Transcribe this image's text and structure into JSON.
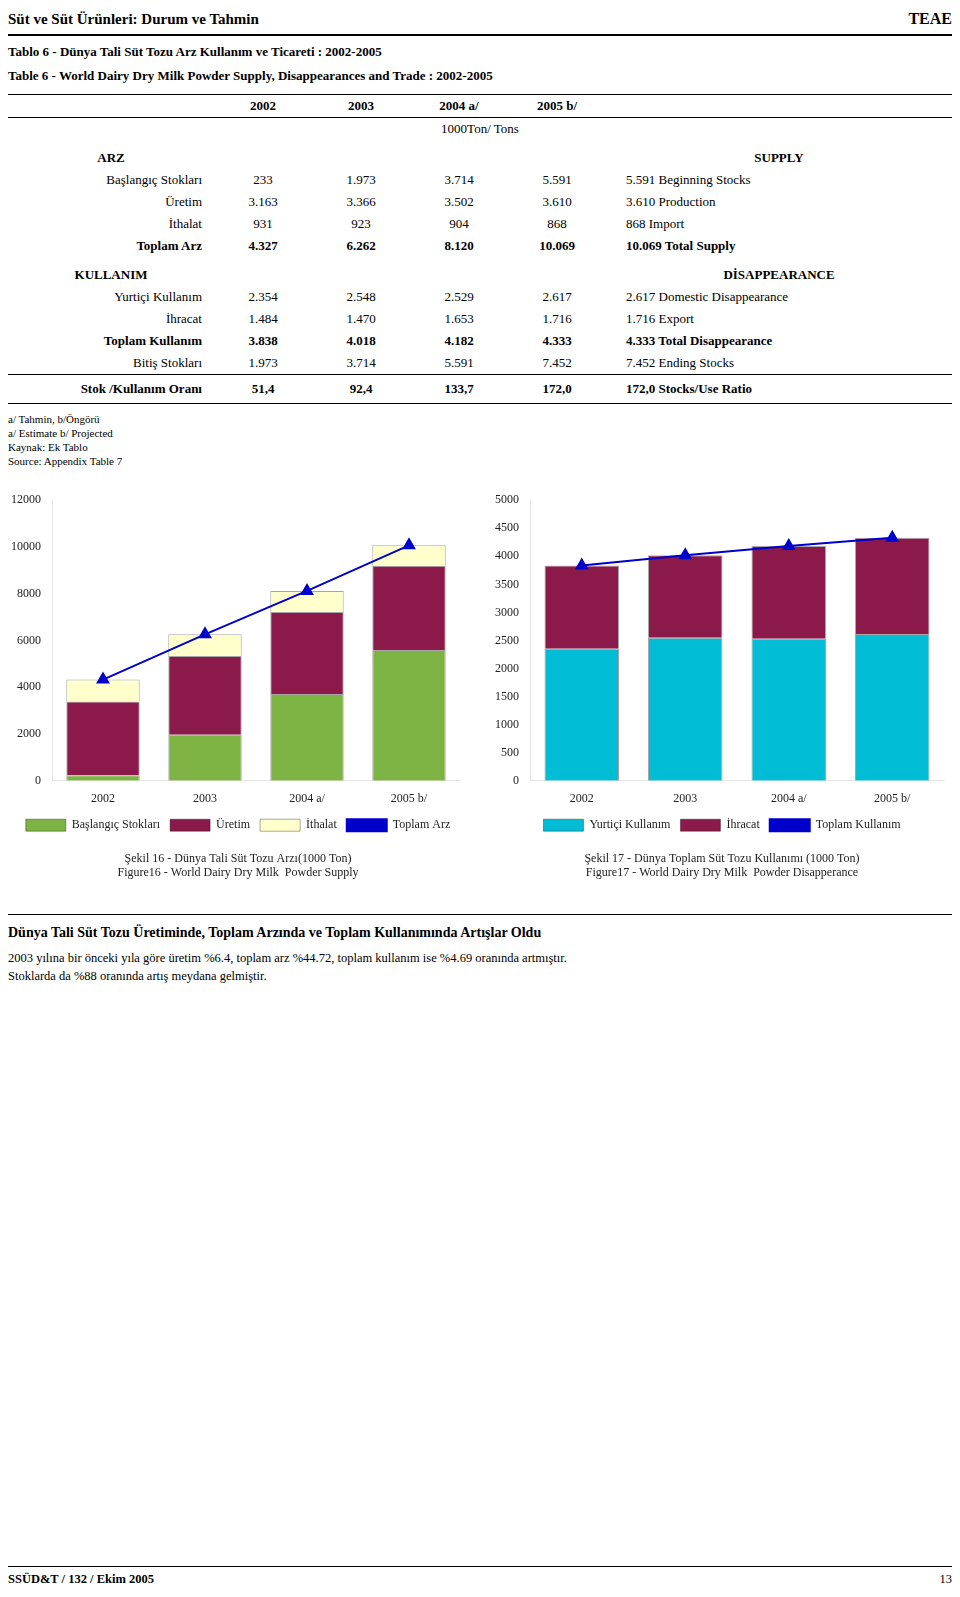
{
  "page": {
    "header_left": "Süt ve Süt Ürünleri: Durum ve Tahmin",
    "header_right": "TEAE",
    "table_titles": [
      "Tablo 6 - Dünya  Tali Süt Tozu Arz Kullanım ve Ticareti : 2002-2005",
      "Table 6 - World Dairy Dry Milk  Powder Supply, Disappearances and Trade : 2002-2005"
    ],
    "columns": [
      "2002",
      "2003",
      "2004 a/",
      "2005 b/"
    ],
    "unit": "1000Ton/ Tons",
    "sections": [
      {
        "left": "ARZ",
        "right": "SUPPLY",
        "rows": [
          {
            "tr": "Başlangıç Stokları",
            "values": [
              "233",
              "1.973",
              "3.714",
              "5.591"
            ],
            "en": "Beginning Stocks",
            "bold": false
          },
          {
            "tr": "Üretim",
            "values": [
              "3.163",
              "3.366",
              "3.502",
              "3.610"
            ],
            "en": "Production",
            "bold": false
          },
          {
            "tr": "İthalat",
            "values": [
              "931",
              "923",
              "904",
              "868"
            ],
            "en": "Import",
            "bold": false
          },
          {
            "tr": "Toplam Arz",
            "values": [
              "4.327",
              "6.262",
              "8.120",
              "10.069"
            ],
            "en": "Total Supply",
            "bold": true
          }
        ]
      },
      {
        "left": "KULLANIM",
        "right": "DİSAPPEARANCE",
        "rows": [
          {
            "tr": "Yurtiçi Kullanım",
            "values": [
              "2.354",
              "2.548",
              "2.529",
              "2.617"
            ],
            "en": "Domestic Disappearance",
            "bold": false
          },
          {
            "tr": "İhracat",
            "values": [
              "1.484",
              "1.470",
              "1.653",
              "1.716"
            ],
            "en": "Export",
            "bold": false
          },
          {
            "tr": "Toplam Kullanım",
            "values": [
              "3.838",
              "4.018",
              "4.182",
              "4.333"
            ],
            "en": "Total Disappearance",
            "bold": true
          },
          {
            "tr": "Bitiş Stokları",
            "values": [
              "1.973",
              "3.714",
              "5.591",
              "7.452"
            ],
            "en": "Ending Stocks",
            "bold": false
          }
        ]
      }
    ],
    "ratio_row": {
      "tr": "Stok /Kullanım Oranı",
      "values": [
        "51,4",
        "92,4",
        "133,7",
        "172,0"
      ],
      "en": "Stocks/Use Ratio",
      "bold": true
    },
    "footnotes": [
      "a/ Tahmin, b/Öngörü",
      "a/ Estimate b/ Projected",
      "Kaynak: Ek Tablo",
      "Source: Appendix Table 7"
    ],
    "bottom_title": "Dünya Tali Süt Tozu Üretiminde, Toplam Arzında ve Toplam Kullanımında Artışlar Oldu",
    "bottom_text": [
      "2003 yılına bir önceki yıla göre üretim %6.4, toplam arz %44.72, toplam kullanım ise %4.69 oranında artmıştır.",
      "Stoklarda da %88 oranında artış meydana gelmiştir."
    ],
    "footer_left": "SSÜD&T / 132 / Ekim 2005",
    "footer_right": "13"
  },
  "chart_data": [
    {
      "type": "bar",
      "stacked": true,
      "title": "Şekil 16 - Dünya Tali Süt Tozu Arzı(1000 Ton)",
      "subtitle": "Figure16 - World Dairy Dry Milk  Powder Supply",
      "categories": [
        "2002",
        "2003",
        "2004 a/",
        "2005 b/"
      ],
      "series": [
        {
          "name": "Başlangıç Stokları",
          "type": "bar",
          "color": "#7cb342",
          "values": [
            233,
            1973,
            3714,
            5591
          ]
        },
        {
          "name": "Üretim",
          "type": "bar",
          "color": "#8b1a4a",
          "values": [
            3163,
            3366,
            3502,
            3610
          ]
        },
        {
          "name": "İthalat",
          "type": "bar",
          "color": "#ffffcc",
          "values": [
            931,
            923,
            904,
            868
          ]
        },
        {
          "name": "Toplam Arz",
          "type": "line",
          "color": "#0000cc",
          "marker": "triangle",
          "values": [
            4327,
            6262,
            8120,
            10069
          ]
        }
      ],
      "ylim": [
        0,
        12000
      ],
      "yticks": [
        0,
        2000,
        4000,
        6000,
        8000,
        10000,
        12000
      ],
      "grid": false,
      "legend": "bottom"
    },
    {
      "type": "bar",
      "stacked": true,
      "title": "Şekil 17 - Dünya Toplam Süt Tozu Kullanımı (1000 Ton)",
      "subtitle": "Figure17 - World Dairy Dry Milk  Powder Disapperance",
      "categories": [
        "2002",
        "2003",
        "2004 a/",
        "2005 b/"
      ],
      "series": [
        {
          "name": "Yurtiçi Kullanım",
          "type": "bar",
          "color": "#00bcd4",
          "values": [
            2354,
            2548,
            2529,
            2617
          ]
        },
        {
          "name": "İhracat",
          "type": "bar",
          "color": "#8b1a4a",
          "values": [
            1484,
            1470,
            1653,
            1716
          ]
        },
        {
          "name": "Toplam Kullanım",
          "type": "line",
          "color": "#0000cc",
          "marker": "triangle",
          "values": [
            3838,
            4018,
            4182,
            4333
          ]
        }
      ],
      "ylim": [
        0,
        5000
      ],
      "yticks": [
        0,
        500,
        1000,
        1500,
        2000,
        2500,
        3000,
        3500,
        4000,
        4500,
        5000
      ],
      "grid": false,
      "legend": "bottom"
    }
  ]
}
